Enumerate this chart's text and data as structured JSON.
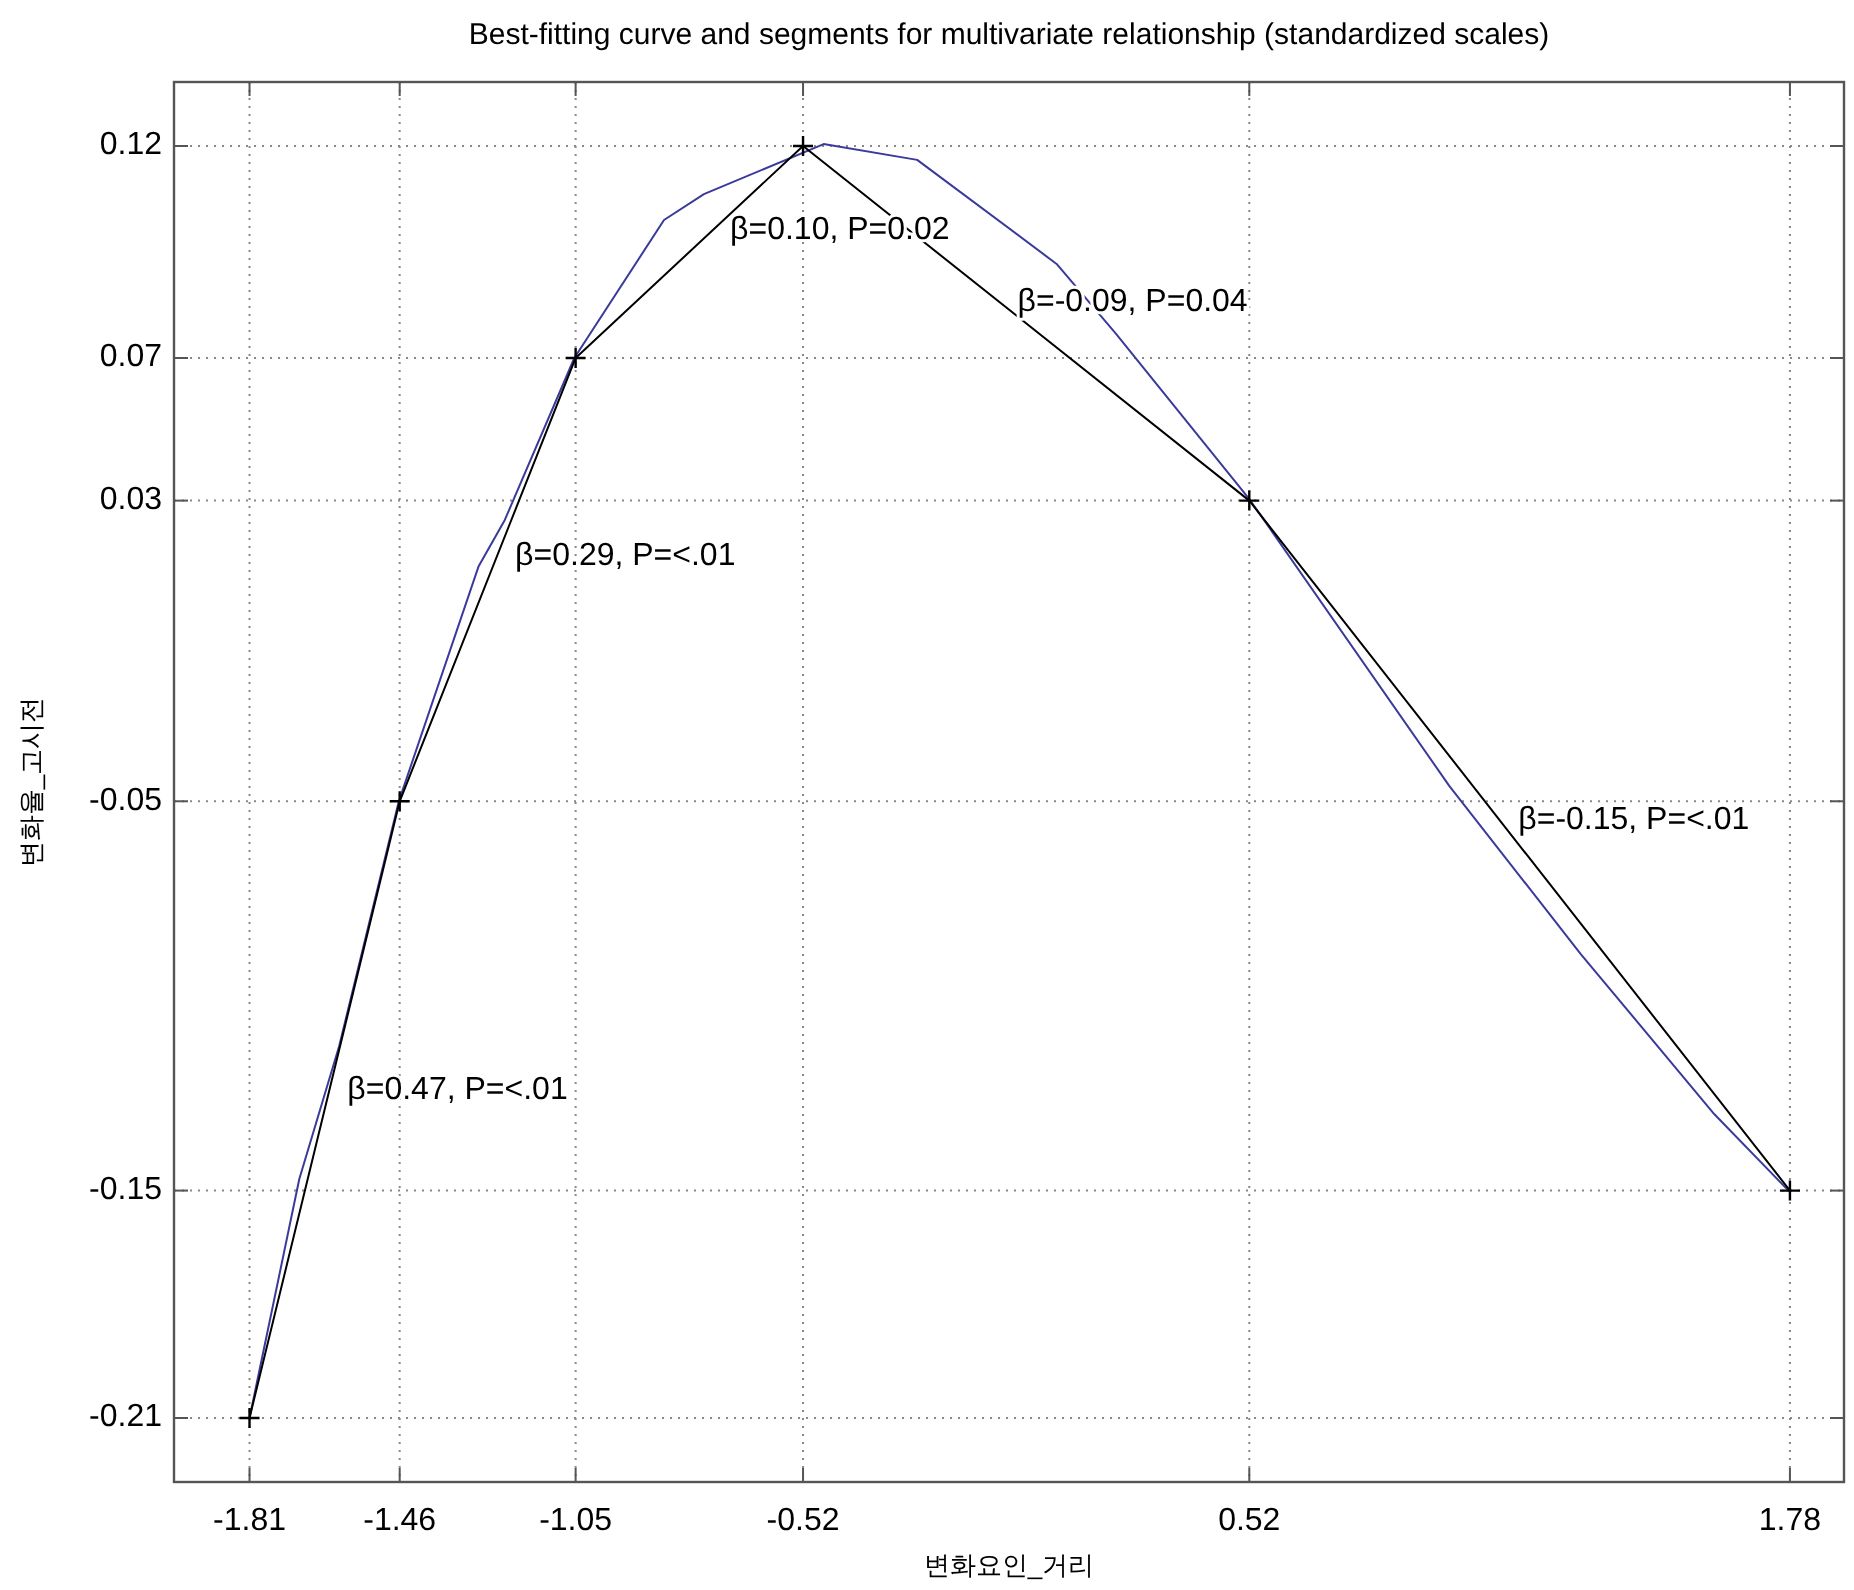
{
  "chart_data": {
    "type": "line",
    "title": "Best-fitting curve and segments for multivariate relationship (standardized scales)",
    "xlabel": "변화요인_거리",
    "ylabel": "변화율_고시전",
    "xlim": [
      -1.986,
      1.906
    ],
    "ylim": [
      -0.2266,
      0.1366
    ],
    "xticks": [
      -1.81,
      -1.46,
      -1.05,
      -0.52,
      0.52,
      1.78
    ],
    "yticks": [
      -0.21,
      {
        "value": -0.151,
        "label": "-0.15"
      },
      -0.05,
      {
        "value": 0.028,
        "label": "0.03"
      },
      {
        "value": 0.065,
        "label": "0.07"
      },
      0.12
    ],
    "grid": true,
    "series": [
      {
        "color": "#3a3a9a",
        "marker": "none",
        "x": [
          -1.81,
          -1.694,
          -1.601,
          -1.462,
          -1.276,
          -1.215,
          -1.053,
          -0.844,
          -0.751,
          -0.472,
          -0.254,
          0.071,
          0.21,
          0.522,
          0.986,
          1.293,
          1.604,
          1.78
        ],
        "values": [
          -0.21,
          -0.148,
          -0.1135,
          -0.05,
          0.011,
          0.023,
          0.065,
          0.1008,
          0.1075,
          0.1205,
          0.1164,
          0.0894,
          0.0712,
          0.0281,
          -0.046,
          -0.0897,
          -0.1312,
          -0.1514
        ]
      },
      {
        "color": "#000000",
        "marker": "cross",
        "x": [
          -1.81,
          -1.46,
          -1.05,
          -0.52,
          0.52,
          1.78
        ],
        "values": [
          -0.21,
          -0.05,
          0.065,
          0.12,
          0.028,
          -0.151
        ]
      }
    ],
    "annotations": [
      {
        "text": "β=0.47, P=<.01",
        "x": -1.624,
        "y": -0.125
      },
      {
        "text": "β=0.29, P=<.01",
        "x": -1.233,
        "y": 0.0136
      },
      {
        "text": "β=0.10, P=0.02",
        "x": -0.732,
        "y": 0.098
      },
      {
        "text": "β=-0.09, P=0.04",
        "x": -0.062,
        "y": 0.0795
      },
      {
        "text": "β=-0.15, P=<.01",
        "x": 1.105,
        "y": -0.055
      }
    ]
  }
}
